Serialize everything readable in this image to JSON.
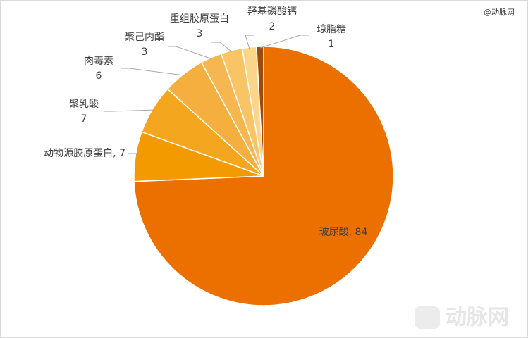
{
  "chart_data": {
    "type": "pie",
    "categories": [
      "玻尿酸",
      "动物源胶原蛋白",
      "聚乳酸",
      "肉毒素",
      "聚己内酯",
      "重组胶原蛋白",
      "羟基磷酸钙",
      "琼脂糖"
    ],
    "values": [
      84,
      7,
      7,
      6,
      3,
      3,
      2,
      1
    ],
    "colors": [
      "#ec7000",
      "#f29a00",
      "#f4a71e",
      "#f4af3f",
      "#f6b650",
      "#f8c465",
      "#fbd68a",
      "#9c4a0e"
    ]
  },
  "watermark": {
    "top": "@动脉网",
    "logo": "动脉网"
  }
}
